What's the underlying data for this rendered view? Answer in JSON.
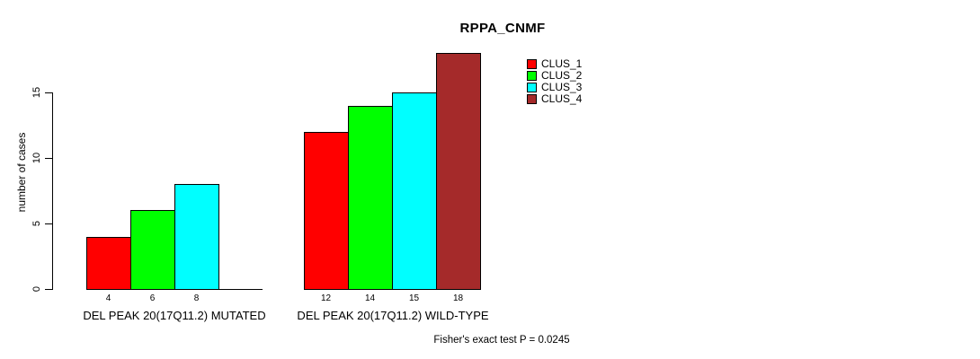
{
  "chart_data": {
    "type": "bar",
    "title": "RPPA_CNMF",
    "xlabel": "",
    "ylabel": "number of cases",
    "ylim": [
      0,
      18
    ],
    "yticks": [
      0,
      5,
      10,
      15
    ],
    "grid": false,
    "legend_position": "top-right",
    "categories": [
      "DEL PEAK 20(17Q11.2) MUTATED",
      "DEL PEAK 20(17Q11.2) WILD-TYPE"
    ],
    "series": [
      {
        "name": "CLUS_1",
        "color": "#ff0000",
        "values": [
          4,
          12
        ]
      },
      {
        "name": "CLUS_2",
        "color": "#00ff00",
        "values": [
          6,
          14
        ]
      },
      {
        "name": "CLUS_3",
        "color": "#00ffff",
        "values": [
          8,
          15
        ]
      },
      {
        "name": "CLUS_4",
        "color": "#a52a2a",
        "values": [
          0,
          18
        ]
      }
    ],
    "bar_value_labels_shown": true,
    "zero_value_bars_hidden": true,
    "annotation": "Fisher's exact test P = 0.0245"
  }
}
